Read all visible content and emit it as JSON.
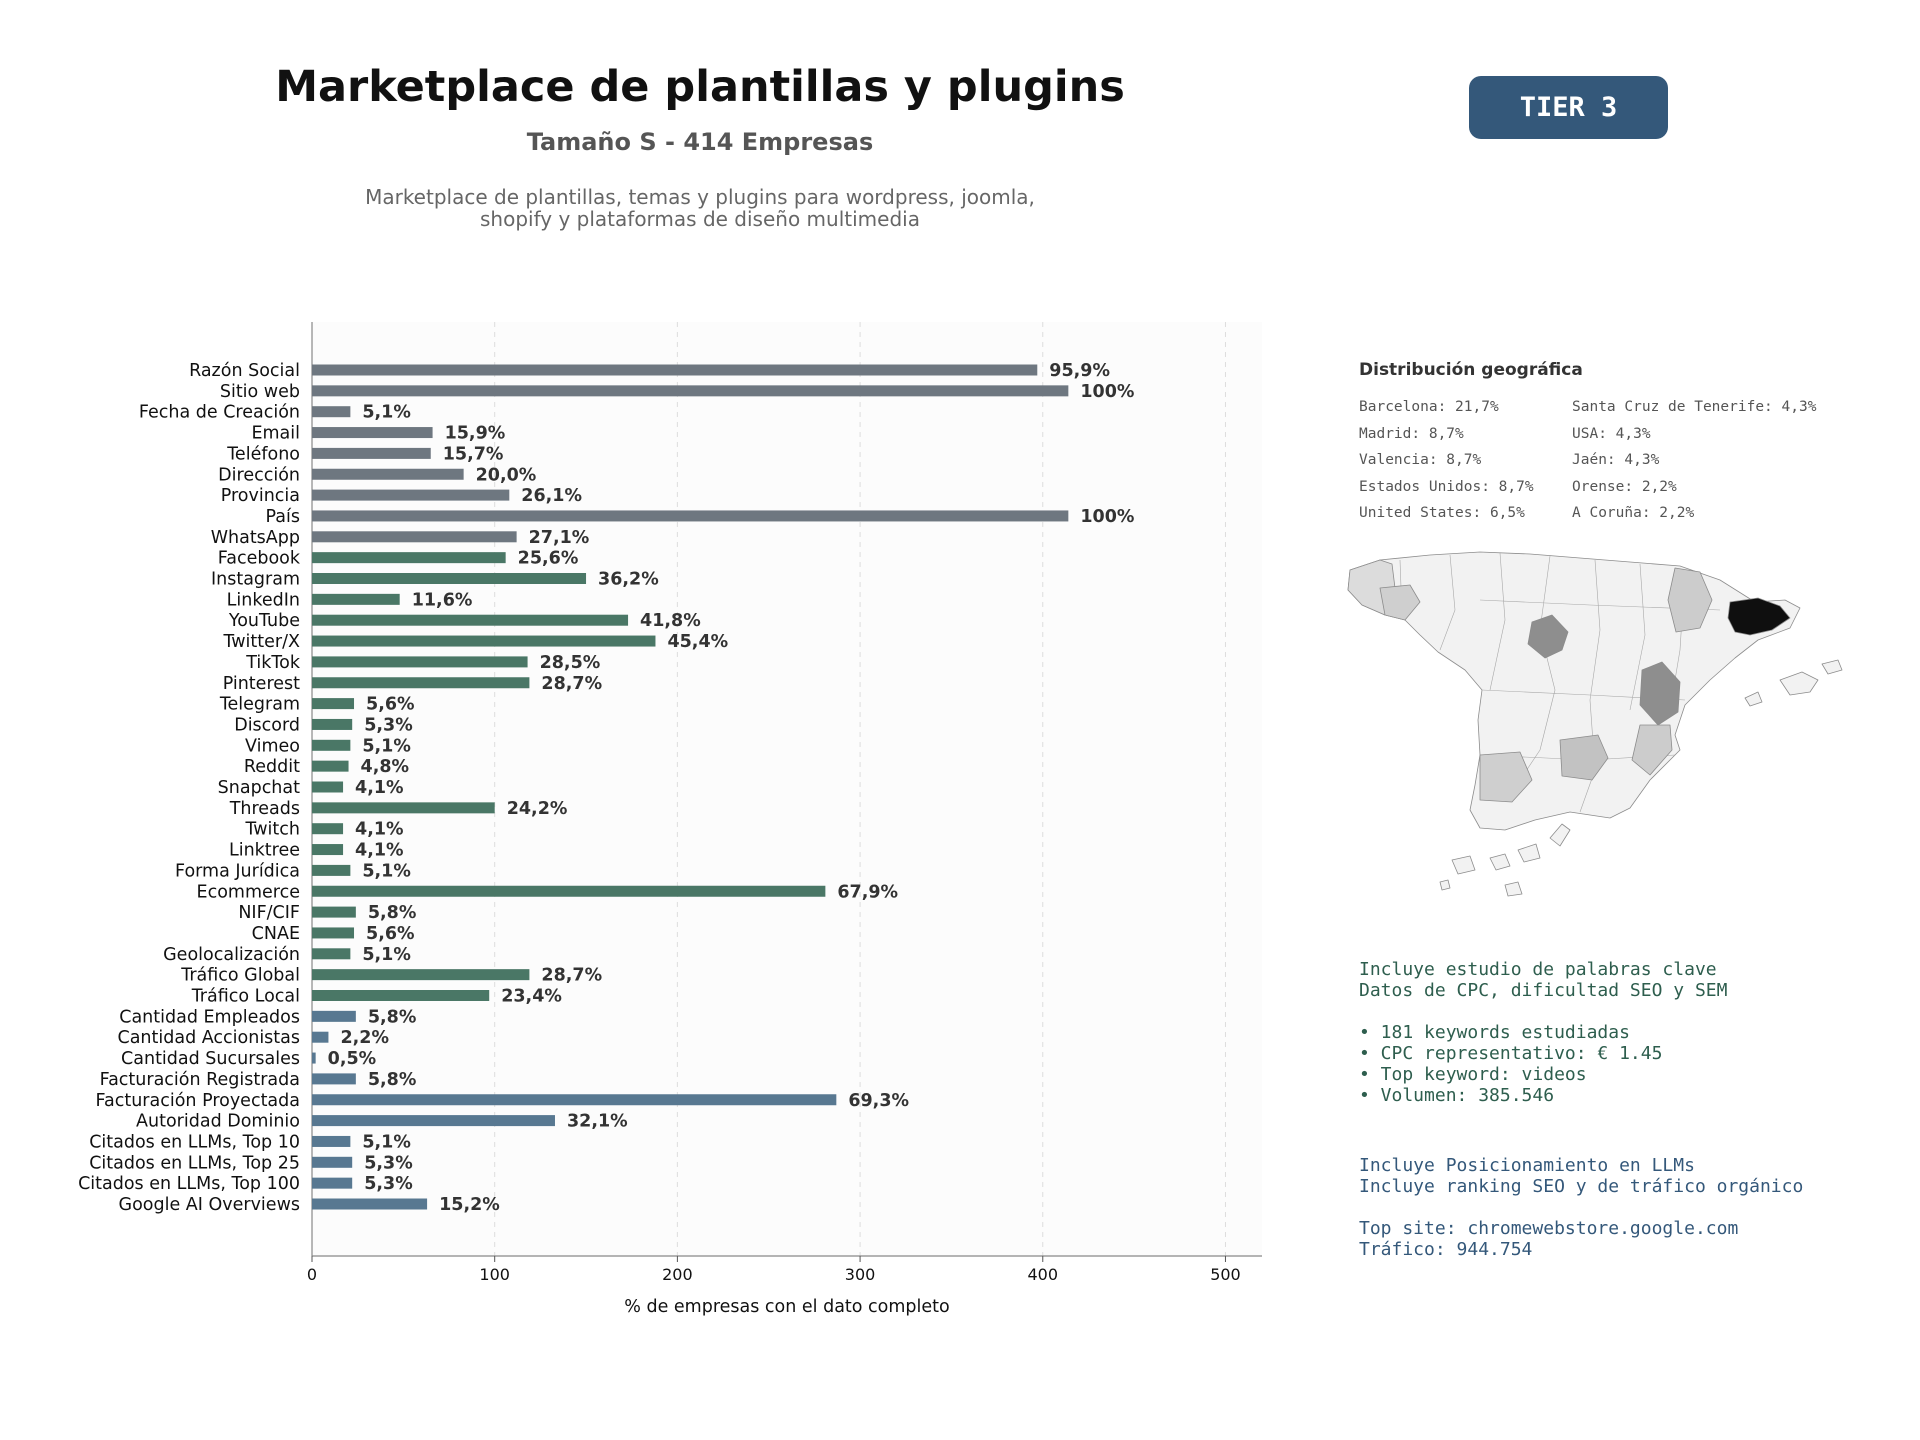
{
  "header": {
    "title": "Marketplace de plantillas y plugins",
    "subtitle": "Tamaño S - 414 Empresas",
    "description_line1": "Marketplace de plantillas, temas y plugins para wordpress, joomla,",
    "description_line2": "shopify y plataformas de diseño multimedia",
    "tier": "TIER 3"
  },
  "colors": {
    "gray": "#6e7780",
    "green": "#4a7766",
    "blue": "#587891",
    "tier": "#34587a"
  },
  "chart_data": {
    "type": "bar",
    "orientation": "horizontal",
    "xlabel": "% de empresas con el dato completo",
    "xlim": [
      0,
      520
    ],
    "xticks": [
      0,
      100,
      200,
      300,
      400,
      500
    ],
    "grid": true,
    "categories": [
      "Razón Social",
      "Sitio web",
      "Fecha de Creación",
      "Email",
      "Teléfono",
      "Dirección",
      "Provincia",
      "País",
      "WhatsApp",
      "Facebook",
      "Instagram",
      "LinkedIn",
      "YouTube",
      "Twitter/X",
      "TikTok",
      "Pinterest",
      "Telegram",
      "Discord",
      "Vimeo",
      "Reddit",
      "Snapchat",
      "Threads",
      "Twitch",
      "Linktree",
      "Forma Jurídica",
      "Ecommerce",
      "NIF/CIF",
      "CNAE",
      "Geolocalización",
      "Tráfico Global",
      "Tráfico Local",
      "Cantidad Empleados",
      "Cantidad Accionistas",
      "Cantidad Sucursales",
      "Facturación Registrada",
      "Facturación Proyectada",
      "Autoridad Dominio",
      "Citados en LLMs, Top 10",
      "Citados en LLMs, Top 25",
      "Citados en LLMs, Top 100",
      "Google AI Overviews"
    ],
    "values": [
      397,
      414,
      21,
      66,
      65,
      83,
      108,
      414,
      112,
      106,
      150,
      48,
      173,
      188,
      118,
      119,
      23,
      22,
      21,
      20,
      17,
      100,
      17,
      17,
      21,
      281,
      24,
      23,
      21,
      119,
      97,
      24,
      9,
      2,
      24,
      287,
      133,
      21,
      22,
      22,
      63
    ],
    "labels": [
      "95,9%",
      "100%",
      "5,1%",
      "15,9%",
      "15,7%",
      "20,0%",
      "26,1%",
      "100%",
      "27,1%",
      "25,6%",
      "36,2%",
      "11,6%",
      "41,8%",
      "45,4%",
      "28,5%",
      "28,7%",
      "5,6%",
      "5,3%",
      "5,1%",
      "4,8%",
      "4,1%",
      "24,2%",
      "4,1%",
      "4,1%",
      "5,1%",
      "67,9%",
      "5,8%",
      "5,6%",
      "5,1%",
      "28,7%",
      "23,4%",
      "5,8%",
      "2,2%",
      "0,5%",
      "5,8%",
      "69,3%",
      "32,1%",
      "5,1%",
      "5,3%",
      "5,3%",
      "15,2%"
    ],
    "groups": [
      "gray",
      "gray",
      "gray",
      "gray",
      "gray",
      "gray",
      "gray",
      "gray",
      "gray",
      "green",
      "green",
      "green",
      "green",
      "green",
      "green",
      "green",
      "green",
      "green",
      "green",
      "green",
      "green",
      "green",
      "green",
      "green",
      "green",
      "green",
      "green",
      "green",
      "green",
      "green",
      "green",
      "blue",
      "blue",
      "blue",
      "blue",
      "blue",
      "blue",
      "blue",
      "blue",
      "blue",
      "blue"
    ]
  },
  "geo": {
    "title": "Distribución geográfica",
    "items": [
      "Barcelona: 21,7%",
      "Santa Cruz de Tenerife: 4,3%",
      "Madrid: 8,7%",
      "USA: 4,3%",
      "Valencia: 8,7%",
      "Jaén: 4,3%",
      "Estados Unidos: 8,7%",
      "Orense: 2,2%",
      "United States: 6,5%",
      "A Coruña: 2,2%"
    ]
  },
  "keywords": {
    "line1": "Incluye estudio de palabras clave",
    "line2": "Datos de CPC, dificultad SEO y SEM",
    "bullet1": "• 181 keywords estudiadas",
    "bullet2": "• CPC representativo: € 1.45",
    "bullet3": "• Top keyword: videos",
    "bullet4": "• Volumen: 385.546"
  },
  "llm": {
    "line1": "Incluye Posicionamiento en LLMs",
    "line2": "Incluye ranking SEO y de tráfico orgánico",
    "line3": "Top site: chromewebstore.google.com",
    "line4": "Tráfico: 944.754"
  }
}
